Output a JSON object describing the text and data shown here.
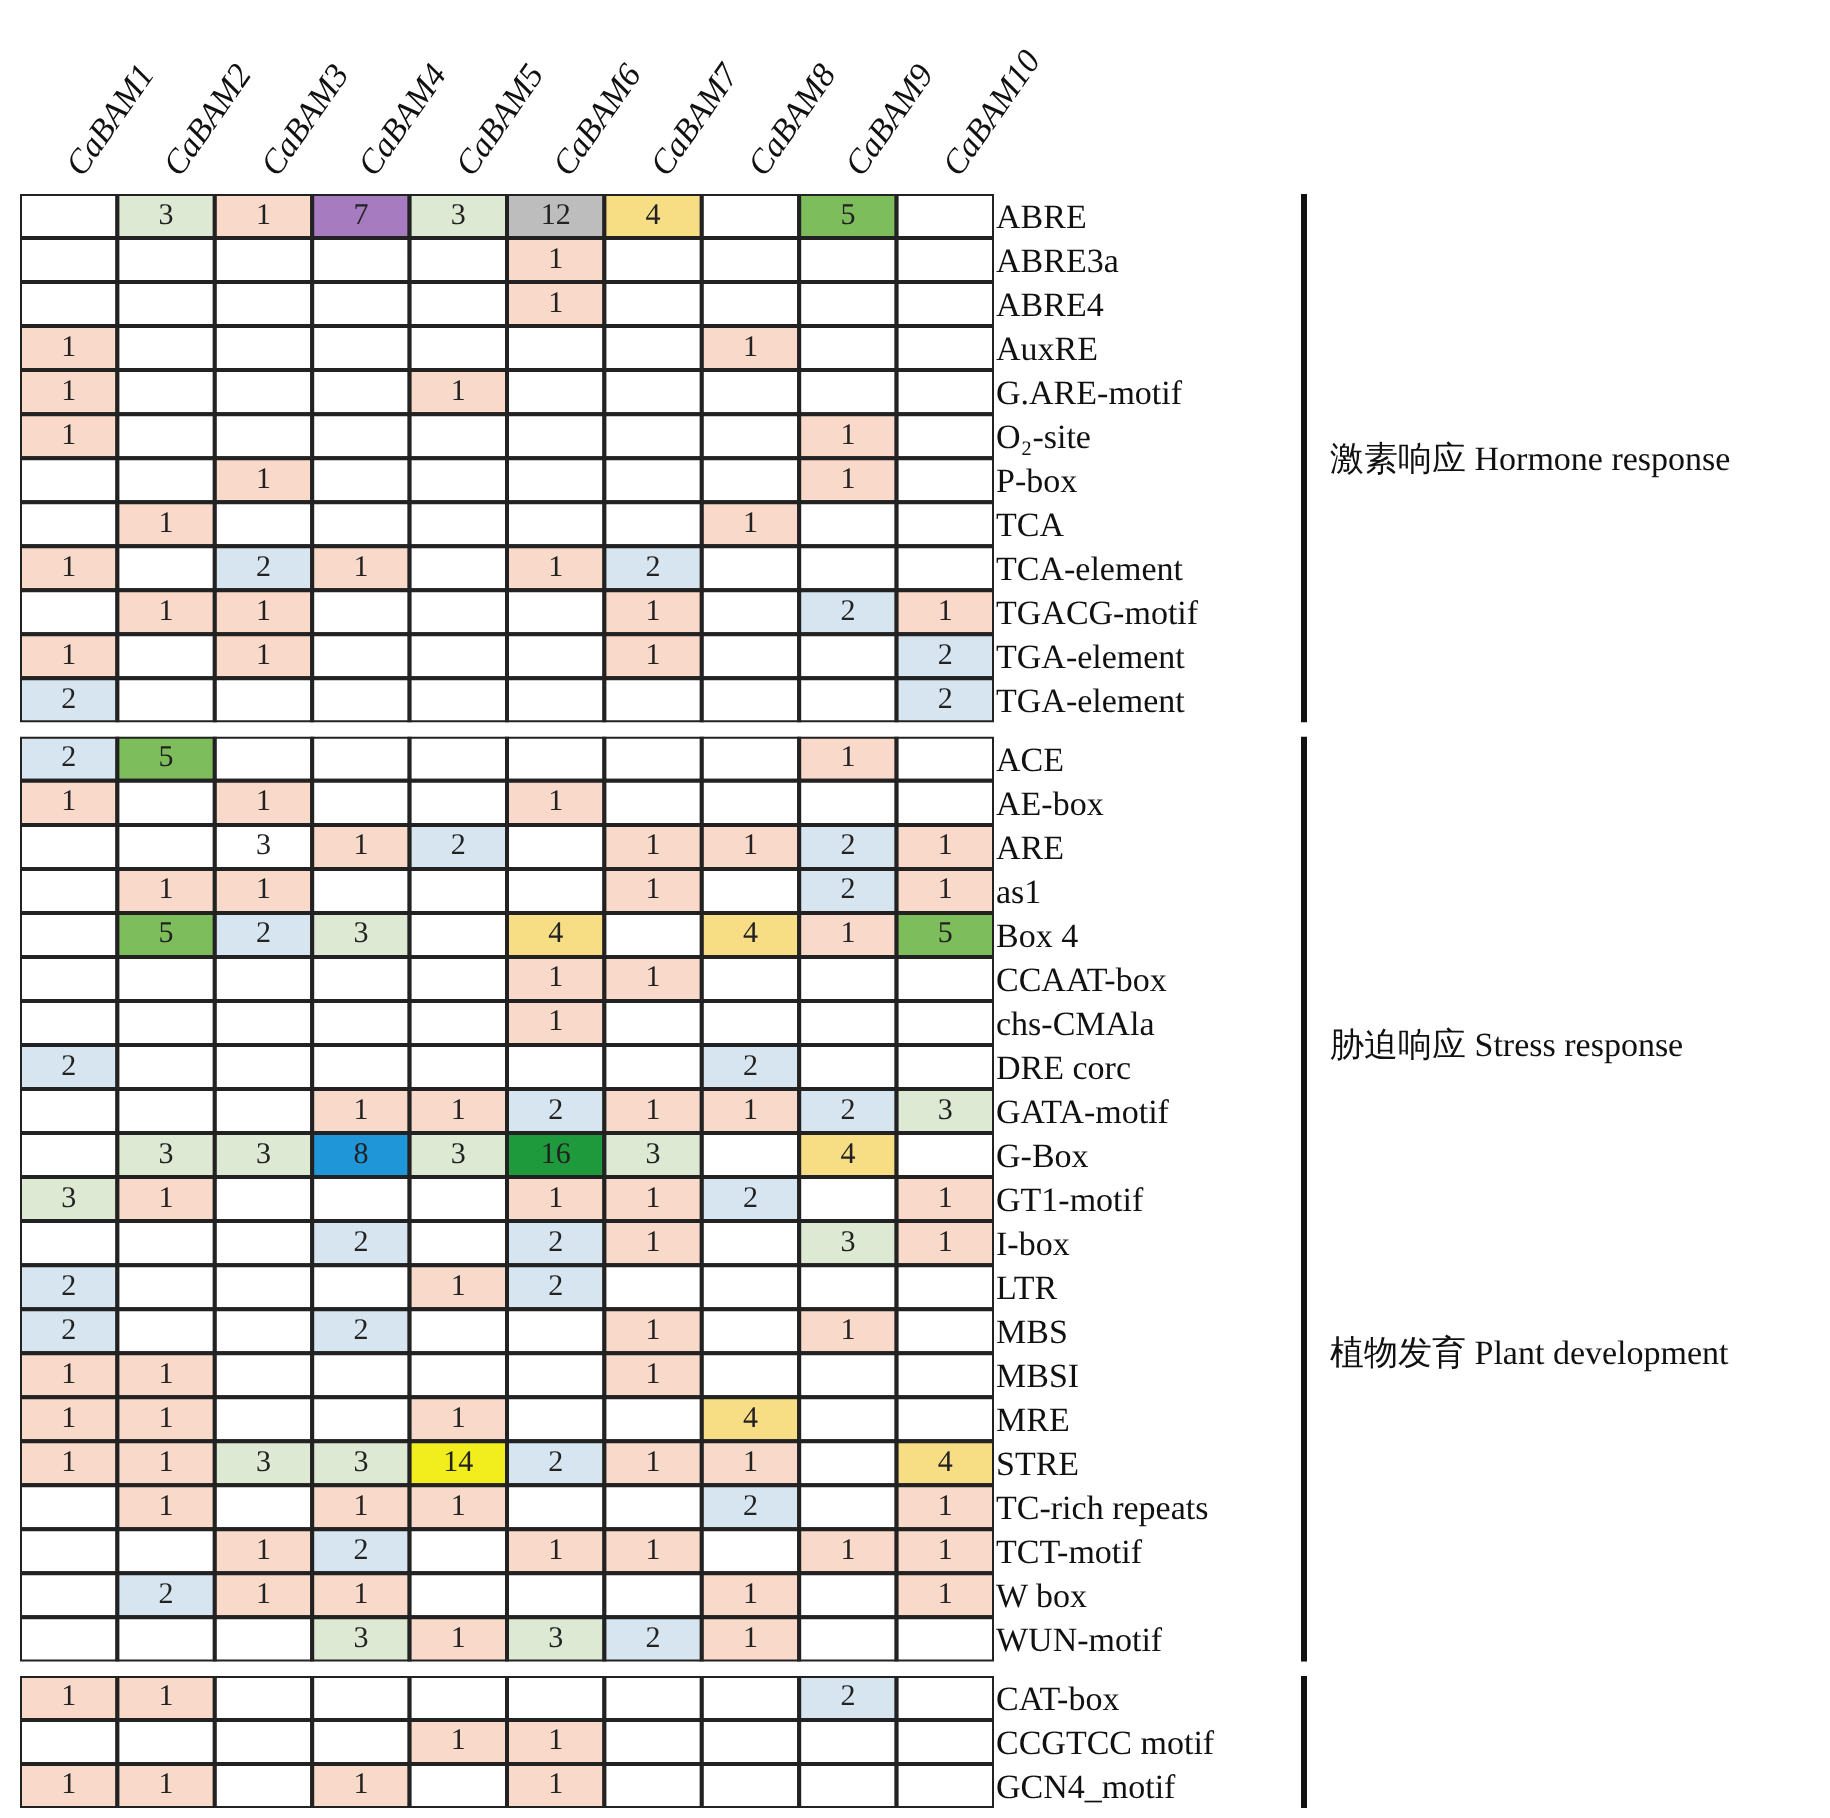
{
  "chart_data": [
    {
      "type": "heatmap",
      "categories": [
        "CaBAM1",
        "CaBAM2",
        "CaBAM3",
        "CaBAM4",
        "CaBAM5",
        "CaBAM6",
        "CaBAM7",
        "CaBAM8",
        "CaBAM9",
        "CaBAM10"
      ],
      "y_categories": [
        "ABRE",
        "ABRE3a",
        "ABRE4",
        "AuxRE",
        "G.ARE-motif",
        "O₂-site",
        "P-box",
        "TCA",
        "TCA-element",
        "TGACG-motif",
        "TGA-element",
        "TGA-element"
      ],
      "cells": [
        [
          null,
          3,
          1,
          7,
          3,
          12,
          4,
          null,
          5,
          null
        ],
        [
          null,
          null,
          null,
          null,
          null,
          1,
          null,
          null,
          null,
          null
        ],
        [
          null,
          null,
          null,
          null,
          null,
          1,
          null,
          null,
          null,
          null
        ],
        [
          1,
          null,
          null,
          null,
          null,
          null,
          null,
          1,
          null,
          null
        ],
        [
          1,
          null,
          null,
          null,
          1,
          null,
          null,
          null,
          null,
          null
        ],
        [
          1,
          null,
          null,
          null,
          null,
          null,
          null,
          null,
          1,
          null
        ],
        [
          null,
          null,
          1,
          null,
          null,
          null,
          null,
          null,
          1,
          null
        ],
        [
          null,
          1,
          null,
          null,
          null,
          null,
          null,
          1,
          null,
          null
        ],
        [
          1,
          null,
          2,
          1,
          null,
          1,
          2,
          null,
          null,
          null
        ],
        [
          null,
          1,
          1,
          null,
          null,
          null,
          1,
          null,
          2,
          1
        ],
        [
          1,
          null,
          1,
          null,
          null,
          null,
          1,
          null,
          null,
          2
        ],
        [
          2,
          null,
          null,
          null,
          null,
          null,
          null,
          null,
          null,
          2
        ]
      ],
      "colors": [
        [
          null,
          "#dde9d3",
          "#f9d9c9",
          "#a77bbf",
          "#dde9d3",
          "#bdbdbd",
          "#f7de85",
          null,
          "#7dbd5c",
          null
        ],
        [
          null,
          null,
          null,
          null,
          null,
          "#f9d9c9",
          null,
          null,
          null,
          null
        ],
        [
          null,
          null,
          null,
          null,
          null,
          "#f9d9c9",
          null,
          null,
          null,
          null
        ],
        [
          "#f9d9c9",
          null,
          null,
          null,
          null,
          null,
          null,
          "#f9d9c9",
          null,
          null
        ],
        [
          "#f9d9c9",
          null,
          null,
          null,
          "#f9d9c9",
          null,
          null,
          null,
          null,
          null
        ],
        [
          "#f9d9c9",
          null,
          null,
          null,
          null,
          null,
          null,
          null,
          "#f9d9c9",
          null
        ],
        [
          null,
          null,
          "#f9d9c9",
          null,
          null,
          null,
          null,
          null,
          "#f9d9c9",
          null
        ],
        [
          null,
          "#f9d9c9",
          null,
          null,
          null,
          null,
          null,
          "#f9d9c9",
          null,
          null
        ],
        [
          "#f9d9c9",
          null,
          "#d6e5f0",
          "#f9d9c9",
          null,
          "#f9d9c9",
          "#d6e5f0",
          null,
          null,
          null
        ],
        [
          null,
          "#f9d9c9",
          "#f9d9c9",
          null,
          null,
          null,
          "#f9d9c9",
          null,
          "#d6e5f0",
          "#f9d9c9"
        ],
        [
          "#f9d9c9",
          null,
          "#f9d9c9",
          null,
          null,
          null,
          "#f9d9c9",
          null,
          null,
          "#d6e5f0"
        ],
        [
          "#d6e5f0",
          null,
          null,
          null,
          null,
          null,
          null,
          null,
          null,
          "#d6e5f0"
        ]
      ],
      "data_labels": true,
      "annotations": [
        "激素响应 Hormone response"
      ]
    },
    {
      "type": "heatmap",
      "categories": [
        null,
        null,
        null,
        null,
        null,
        null,
        null,
        null,
        null,
        null
      ],
      "y_categories": [
        "ACE",
        "AE-box",
        "ARE",
        "as1",
        "Box 4",
        "CCAAT-box",
        "chs-CMAla",
        "DRE corc",
        "GATA-motif",
        "G-Box",
        "GT1-motif",
        "I-box",
        "LTR",
        "MBS",
        "MBSI",
        "MRE",
        "STRE",
        "TC-rich repeats",
        "TCT-motif",
        "W box",
        "WUN-motif"
      ],
      "cells": [
        [
          2,
          5,
          null,
          null,
          null,
          null,
          null,
          null,
          1,
          null
        ],
        [
          1,
          null,
          1,
          null,
          null,
          1,
          null,
          null,
          null,
          null
        ],
        [
          null,
          null,
          3,
          1,
          2,
          null,
          1,
          1,
          2,
          1
        ],
        [
          null,
          1,
          1,
          null,
          null,
          null,
          1,
          null,
          2,
          1
        ],
        [
          null,
          5,
          2,
          3,
          null,
          4,
          null,
          4,
          1,
          5
        ],
        [
          null,
          null,
          null,
          null,
          null,
          1,
          1,
          null,
          null,
          null
        ],
        [
          null,
          null,
          null,
          null,
          null,
          1,
          null,
          null,
          null,
          null
        ],
        [
          2,
          null,
          null,
          null,
          null,
          null,
          null,
          2,
          null,
          null
        ],
        [
          null,
          null,
          null,
          1,
          1,
          2,
          1,
          1,
          2,
          3
        ],
        [
          null,
          3,
          3,
          8,
          3,
          16,
          3,
          null,
          4,
          null
        ],
        [
          3,
          1,
          null,
          null,
          null,
          1,
          1,
          2,
          null,
          1
        ],
        [
          null,
          null,
          null,
          2,
          null,
          2,
          1,
          null,
          3,
          1
        ],
        [
          2,
          null,
          null,
          null,
          1,
          2,
          null,
          null,
          null,
          null
        ],
        [
          2,
          null,
          null,
          2,
          null,
          null,
          1,
          null,
          1,
          null
        ],
        [
          1,
          1,
          null,
          null,
          null,
          null,
          1,
          null,
          null,
          null
        ],
        [
          1,
          1,
          null,
          null,
          1,
          null,
          null,
          4,
          null,
          null
        ],
        [
          1,
          1,
          3,
          3,
          14,
          2,
          1,
          1,
          null,
          4
        ],
        [
          null,
          1,
          null,
          1,
          1,
          null,
          null,
          2,
          null,
          1
        ],
        [
          null,
          null,
          1,
          2,
          null,
          1,
          1,
          null,
          1,
          1
        ],
        [
          null,
          2,
          1,
          1,
          null,
          null,
          null,
          1,
          null,
          1
        ],
        [
          null,
          null,
          null,
          3,
          1,
          3,
          2,
          1,
          null,
          null
        ]
      ],
      "colors": [
        [
          "#d6e5f0",
          "#7dbd5c",
          null,
          null,
          null,
          null,
          null,
          null,
          "#f9d9c9",
          null
        ],
        [
          "#f9d9c9",
          null,
          "#f9d9c9",
          null,
          null,
          "#f9d9c9",
          null,
          null,
          null,
          null
        ],
        [
          null,
          null,
          null,
          "#f9d9c9",
          "#d6e5f0",
          null,
          "#f9d9c9",
          "#f9d9c9",
          "#d6e5f0",
          "#f9d9c9"
        ],
        [
          null,
          "#f9d9c9",
          "#f9d9c9",
          null,
          null,
          null,
          "#f9d9c9",
          null,
          "#d6e5f0",
          "#f9d9c9"
        ],
        [
          null,
          "#7dbd5c",
          "#d6e5f0",
          "#dde9d3",
          null,
          "#f7de85",
          null,
          "#f7de85",
          "#f9d9c9",
          "#7dbd5c"
        ],
        [
          null,
          null,
          null,
          null,
          null,
          "#f9d9c9",
          "#f9d9c9",
          null,
          null,
          null
        ],
        [
          null,
          null,
          null,
          null,
          null,
          "#f9d9c9",
          null,
          null,
          null,
          null
        ],
        [
          "#d6e5f0",
          null,
          null,
          null,
          null,
          null,
          null,
          "#d6e5f0",
          null,
          null
        ],
        [
          null,
          null,
          null,
          "#f9d9c9",
          "#f9d9c9",
          "#d6e5f0",
          "#f9d9c9",
          "#f9d9c9",
          "#d6e5f0",
          "#dde9d3"
        ],
        [
          null,
          "#dde9d3",
          "#dde9d3",
          "#1f96d8",
          "#dde9d3",
          "#1e9a3c",
          "#dde9d3",
          null,
          "#f7de85",
          null
        ],
        [
          "#dde9d3",
          "#f9d9c9",
          null,
          null,
          null,
          "#f9d9c9",
          "#f9d9c9",
          "#d6e5f0",
          null,
          "#f9d9c9"
        ],
        [
          null,
          null,
          null,
          "#d6e5f0",
          null,
          "#d6e5f0",
          "#f9d9c9",
          null,
          "#dde9d3",
          "#f9d9c9"
        ],
        [
          "#d6e5f0",
          null,
          null,
          null,
          "#f9d9c9",
          "#d6e5f0",
          null,
          null,
          null,
          null
        ],
        [
          "#d6e5f0",
          null,
          null,
          "#d6e5f0",
          null,
          null,
          "#f9d9c9",
          null,
          "#f9d9c9",
          null
        ],
        [
          "#f9d9c9",
          "#f9d9c9",
          null,
          null,
          null,
          null,
          "#f9d9c9",
          null,
          null,
          null
        ],
        [
          "#f9d9c9",
          "#f9d9c9",
          null,
          null,
          "#f9d9c9",
          null,
          null,
          "#f7de85",
          null,
          null
        ],
        [
          "#f9d9c9",
          "#f9d9c9",
          "#dde9d3",
          "#dde9d3",
          "#f2ee1e",
          "#d6e5f0",
          "#f9d9c9",
          "#f9d9c9",
          null,
          "#f7de85"
        ],
        [
          null,
          "#f9d9c9",
          null,
          "#f9d9c9",
          "#f9d9c9",
          null,
          null,
          "#d6e5f0",
          null,
          "#f9d9c9"
        ],
        [
          null,
          null,
          "#f9d9c9",
          "#d6e5f0",
          null,
          "#f9d9c9",
          "#f9d9c9",
          null,
          "#f9d9c9",
          "#f9d9c9"
        ],
        [
          null,
          "#d6e5f0",
          "#f9d9c9",
          "#f9d9c9",
          null,
          null,
          null,
          "#f9d9c9",
          null,
          "#f9d9c9"
        ],
        [
          null,
          null,
          null,
          "#dde9d3",
          "#f9d9c9",
          "#dde9d3",
          "#d6e5f0",
          "#f9d9c9",
          null,
          null
        ]
      ],
      "data_labels": true,
      "tick_labels": "y",
      "annotations": [
        "胁迫响应 Stress response",
        "植物发育 Plant development"
      ]
    },
    {
      "type": "heatmap",
      "categories": [
        null,
        null,
        null,
        null,
        null,
        null,
        null,
        null,
        null,
        null
      ],
      "y_categories": [
        "CAT-box",
        "CCGTCC motif",
        "GCN4_motif"
      ],
      "cells": [
        [
          1,
          1,
          null,
          null,
          null,
          null,
          null,
          null,
          2,
          null
        ],
        [
          null,
          null,
          null,
          null,
          1,
          1,
          null,
          null,
          null,
          null
        ],
        [
          1,
          1,
          null,
          1,
          null,
          1,
          null,
          null,
          null,
          null
        ]
      ],
      "colors": [
        [
          "#f9d9c9",
          "#f9d9c9",
          null,
          null,
          null,
          null,
          null,
          null,
          "#d6e5f0",
          null
        ],
        [
          null,
          null,
          null,
          null,
          "#f9d9c9",
          "#f9d9c9",
          null,
          null,
          null,
          null
        ],
        [
          "#f9d9c9",
          "#f9d9c9",
          null,
          "#f9d9c9",
          null,
          "#f9d9c9",
          null,
          null,
          null,
          null
        ]
      ],
      "data_labels": true,
      "tick_labels": "y"
    }
  ]
}
